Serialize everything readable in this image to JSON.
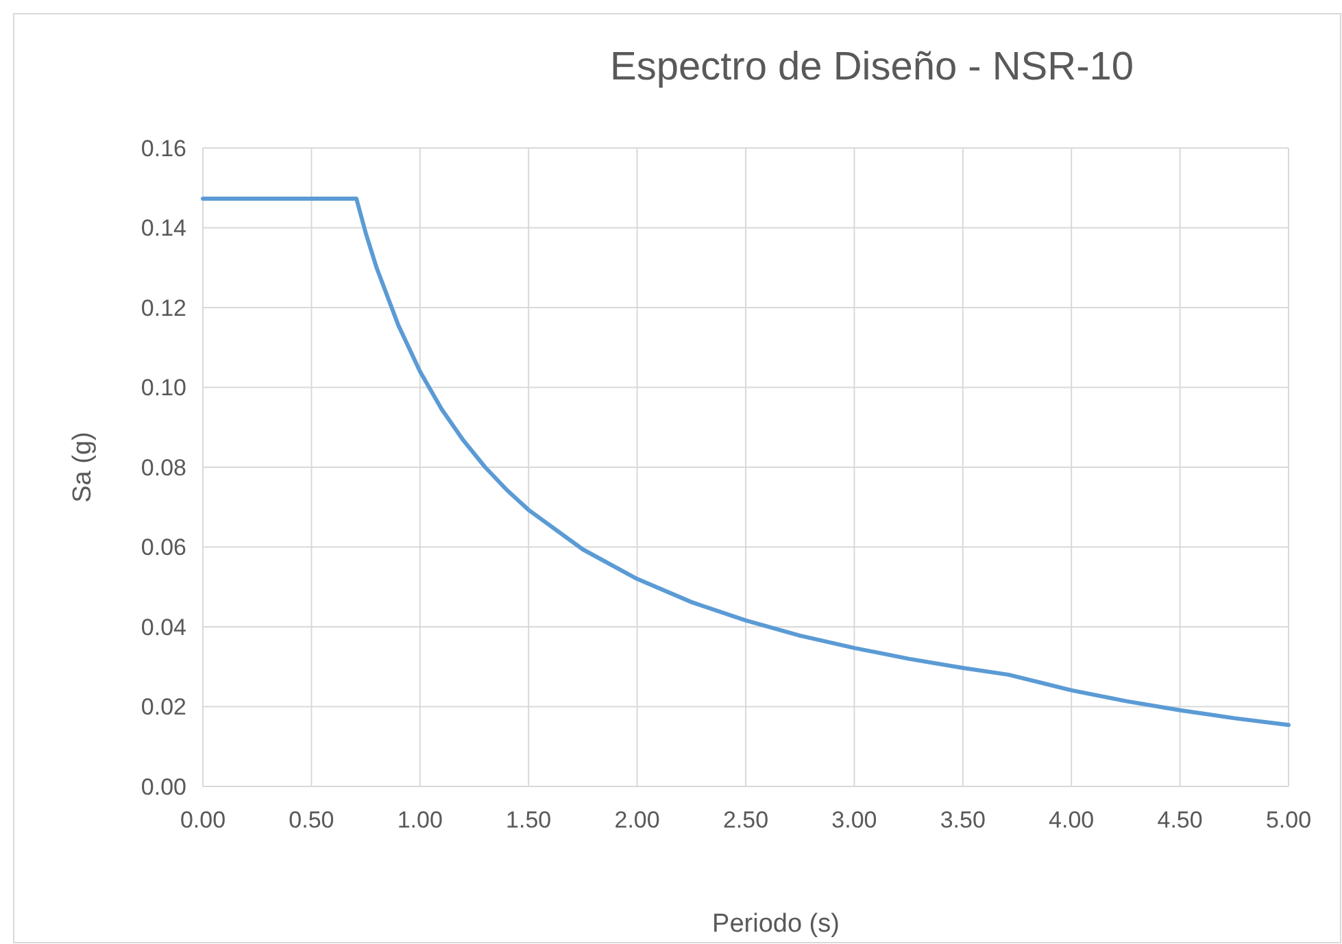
{
  "chart_data": {
    "type": "line",
    "title": "Espectro de Diseño - NSR-10",
    "xlabel": "Periodo (s)",
    "ylabel": "Sa (g)",
    "x": [
      0,
      0.707,
      0.75,
      0.8,
      0.9,
      1.0,
      1.1,
      1.2,
      1.3,
      1.4,
      1.5,
      1.75,
      2.0,
      2.25,
      2.5,
      2.75,
      3.0,
      3.25,
      3.5,
      3.71,
      4.0,
      4.25,
      4.5,
      4.75,
      5.0
    ],
    "series": [
      {
        "color": "#5b9bd5",
        "values": [
          0.1473,
          0.1473,
          0.1387,
          0.13,
          0.1156,
          0.104,
          0.0945,
          0.0867,
          0.08,
          0.0743,
          0.0693,
          0.0594,
          0.052,
          0.0462,
          0.0416,
          0.0378,
          0.0347,
          0.032,
          0.0297,
          0.028,
          0.0241,
          0.0214,
          0.0191,
          0.0171,
          0.0154
        ]
      }
    ],
    "xlim": [
      0,
      5
    ],
    "ylim": [
      0,
      0.16
    ],
    "xticks": [
      {
        "value": 0,
        "label": "0.00"
      },
      {
        "value": 0.5,
        "label": "0.50"
      },
      {
        "value": 1,
        "label": "1.00"
      },
      {
        "value": 1.5,
        "label": "1.50"
      },
      {
        "value": 2,
        "label": "2.00"
      },
      {
        "value": 2.5,
        "label": "2.50"
      },
      {
        "value": 3,
        "label": "3.00"
      },
      {
        "value": 3.5,
        "label": "3.50"
      },
      {
        "value": 4,
        "label": "4.00"
      },
      {
        "value": 4.5,
        "label": "4.50"
      },
      {
        "value": 5,
        "label": "5.00"
      }
    ],
    "yticks": [
      {
        "value": 0,
        "label": "0.00"
      },
      {
        "value": 0.02,
        "label": "0.02"
      },
      {
        "value": 0.04,
        "label": "0.04"
      },
      {
        "value": 0.06,
        "label": "0.06"
      },
      {
        "value": 0.08,
        "label": "0.08"
      },
      {
        "value": 0.1,
        "label": "0.10"
      },
      {
        "value": 0.12,
        "label": "0.12"
      },
      {
        "value": 0.14,
        "label": "0.14"
      },
      {
        "value": 0.16,
        "label": "0.16"
      }
    ],
    "grid": true,
    "marker": "none",
    "line_style": "solid"
  }
}
